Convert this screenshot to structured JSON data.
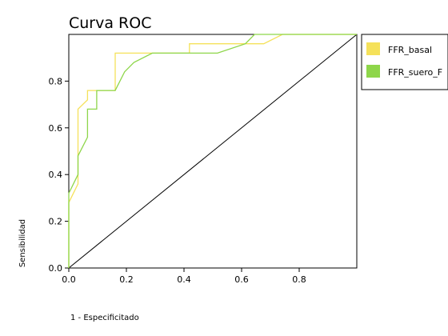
{
  "chart_data": {
    "type": "line",
    "title": "Curva ROC",
    "xlabel": "1 - Especificitado",
    "ylabel": "Sensibilidad",
    "xlim": [
      0,
      1
    ],
    "ylim": [
      0,
      1
    ],
    "xticks": [
      "0.0",
      "0.2",
      "0.4",
      "0.6",
      "0.8"
    ],
    "yticks": [
      "0.0",
      "0.2",
      "0.4",
      "0.6",
      "0.8"
    ],
    "xtick_values": [
      0,
      0.2,
      0.4,
      0.6,
      0.8
    ],
    "ytick_values": [
      0,
      0.2,
      0.4,
      0.6,
      0.8
    ],
    "grid": false,
    "legend_position": "right",
    "reference_line": {
      "x": [
        0,
        1
      ],
      "y": [
        0,
        1
      ],
      "color": "#000000"
    },
    "series": [
      {
        "name": "FFR_basal",
        "color": "#f5e15a",
        "x": [
          0,
          0,
          0.032,
          0.032,
          0.065,
          0.065,
          0.097,
          0.097,
          0.161,
          0.161,
          0.419,
          0.419,
          0.613,
          0.677,
          0.742,
          1
        ],
        "y": [
          0,
          0.28,
          0.36,
          0.68,
          0.72,
          0.76,
          0.76,
          0.76,
          0.76,
          0.92,
          0.92,
          0.96,
          0.96,
          0.96,
          1,
          1
        ]
      },
      {
        "name": "FFR_suero_F",
        "color": "#8ed64a",
        "x": [
          0,
          0,
          0.032,
          0.032,
          0.065,
          0.065,
          0.097,
          0.097,
          0.161,
          0.194,
          0.226,
          0.29,
          0.516,
          0.613,
          0.645,
          1
        ],
        "y": [
          0,
          0.32,
          0.4,
          0.48,
          0.56,
          0.68,
          0.68,
          0.76,
          0.76,
          0.84,
          0.88,
          0.92,
          0.92,
          0.96,
          1,
          1
        ]
      }
    ]
  }
}
